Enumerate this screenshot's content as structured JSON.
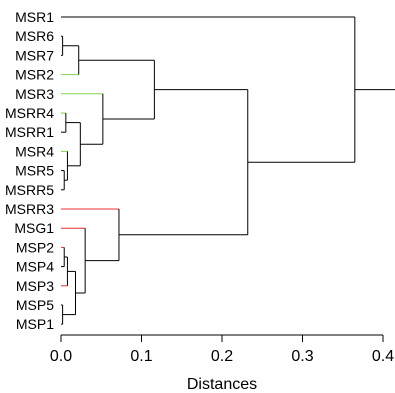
{
  "dendrogram": {
    "xlabel": "Distances",
    "xlim": [
      0,
      0.4
    ],
    "ticks": [
      0.0,
      0.1,
      0.2,
      0.3,
      0.4
    ],
    "tick_labels": [
      "0.0",
      "0.1",
      "0.2",
      "0.3",
      "0.4"
    ],
    "leaves": [
      {
        "name": "MSR1",
        "color": "#000000"
      },
      {
        "name": "MSR6",
        "color": "#000000"
      },
      {
        "name": "MSR7",
        "color": "#000000"
      },
      {
        "name": "MSR2",
        "color": "#7fd64a"
      },
      {
        "name": "MSR3",
        "color": "#7fd64a"
      },
      {
        "name": "MSRR4",
        "color": "#7fd64a"
      },
      {
        "name": "MSRR1",
        "color": "#000000"
      },
      {
        "name": "MSR4",
        "color": "#7fd64a"
      },
      {
        "name": "MSR5",
        "color": "#000000"
      },
      {
        "name": "MSRR5",
        "color": "#000000"
      },
      {
        "name": "MSRR3",
        "color": "#e83030"
      },
      {
        "name": "MSG1",
        "color": "#e83030"
      },
      {
        "name": "MSP2",
        "color": "#e83030"
      },
      {
        "name": "MSP4",
        "color": "#000000"
      },
      {
        "name": "MSP3",
        "color": "#e83030"
      },
      {
        "name": "MSP5",
        "color": "#000000"
      },
      {
        "name": "MSP1",
        "color": "#000000"
      }
    ],
    "merges": [
      {
        "a": "MSR6",
        "b": "MSR7",
        "h": 0.002
      },
      {
        "a": "m0",
        "b": "MSR2",
        "h": 0.022
      },
      {
        "a": "MSRR4",
        "b": "MSRR1",
        "h": 0.006
      },
      {
        "a": "MSR5",
        "b": "MSRR5",
        "h": 0.004
      },
      {
        "a": "MSR4",
        "b": "m3",
        "h": 0.008
      },
      {
        "a": "m2",
        "b": "m4",
        "h": 0.024
      },
      {
        "a": "MSR3",
        "b": "m5",
        "h": 0.052
      },
      {
        "a": "m1",
        "b": "m6",
        "h": 0.116
      },
      {
        "a": "MSP2",
        "b": "MSP4",
        "h": 0.004
      },
      {
        "a": "m8",
        "b": "MSP3",
        "h": 0.008
      },
      {
        "a": "MSP5",
        "b": "MSP1",
        "h": 0.002
      },
      {
        "a": "m9",
        "b": "m10",
        "h": 0.018
      },
      {
        "a": "MSG1",
        "b": "m11",
        "h": 0.03
      },
      {
        "a": "MSRR3",
        "b": "m12",
        "h": 0.072
      },
      {
        "a": "m7",
        "b": "m13",
        "h": 0.232
      },
      {
        "a": "MSR1",
        "b": "m14",
        "h": 0.365
      },
      {
        "a": "m15",
        "b": "root",
        "h": 0.4
      }
    ]
  }
}
